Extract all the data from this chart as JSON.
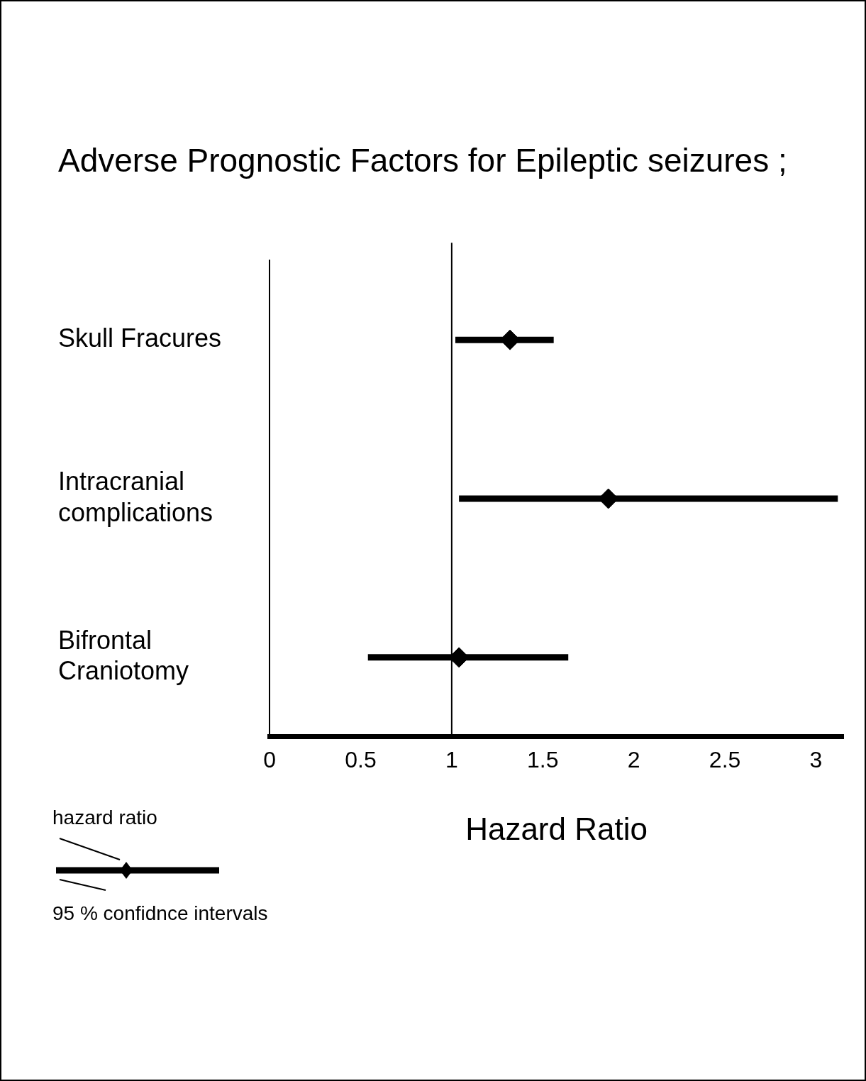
{
  "chart_data": {
    "type": "scatter",
    "orientation": "horizontal",
    "title": "Adverse Prognostic Factors for Epileptic seizures ;",
    "xlabel": "Hazard Ratio",
    "categories": [
      "Skull Fracures",
      "Intracranial complications",
      "Bifrontal Craniotomy"
    ],
    "values": [
      1.32,
      1.86,
      1.04
    ],
    "errors": [
      [
        1.02,
        1.56
      ],
      [
        1.04,
        3.12
      ],
      [
        0.54,
        1.64
      ]
    ],
    "color": "#000000",
    "marker": "diamond",
    "xlim": [
      0,
      3.15
    ],
    "xticks": [
      0,
      0.5,
      1,
      1.5,
      2,
      2.5,
      3
    ],
    "ref_lines": [
      {
        "axis": "x",
        "value": 1,
        "color": "#000000"
      }
    ],
    "grid": false,
    "legend": false,
    "annotations": [
      "hazard ratio",
      "95 % confidnce intervals"
    ]
  }
}
